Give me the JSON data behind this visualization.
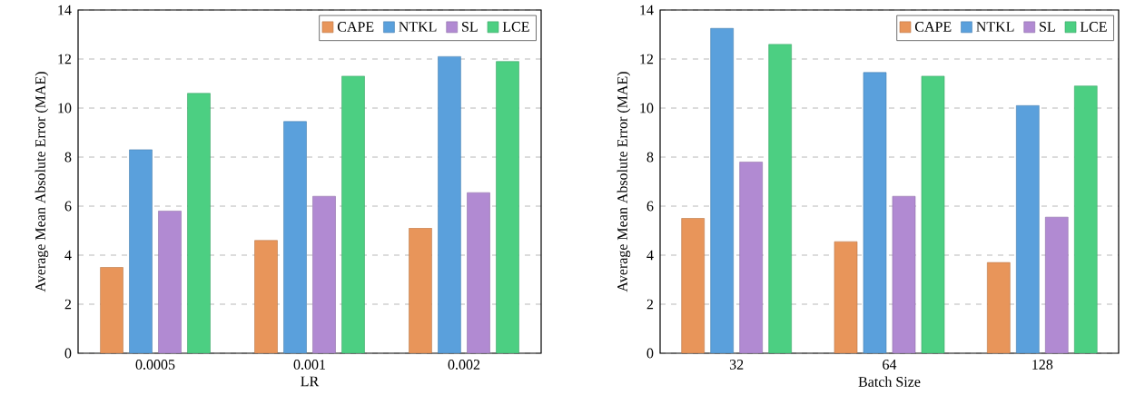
{
  "chart_data": [
    {
      "type": "bar",
      "categories": [
        "0.0005",
        "0.001",
        "0.002"
      ],
      "xlabel": "LR",
      "ylabel": "Average Mean Absolute Error (MAE)",
      "ylim": [
        0,
        14
      ],
      "yticks": [
        0,
        2,
        4,
        6,
        8,
        10,
        12,
        14
      ],
      "grid": "y",
      "legend": "top right",
      "series": [
        {
          "name": "CAPE",
          "color": "#e8955a",
          "values": [
            3.5,
            4.6,
            5.1
          ]
        },
        {
          "name": "NTKL",
          "color": "#5aa0dc",
          "values": [
            8.3,
            9.45,
            12.1
          ]
        },
        {
          "name": "SL",
          "color": "#b18ad2",
          "values": [
            5.8,
            6.4,
            6.55
          ]
        },
        {
          "name": "LCE",
          "color": "#4ccf82",
          "values": [
            10.6,
            11.3,
            11.9
          ]
        }
      ]
    },
    {
      "type": "bar",
      "categories": [
        "32",
        "64",
        "128"
      ],
      "xlabel": "Batch Size",
      "ylabel": "Average Mean Absolute Error (MAE)",
      "ylim": [
        0,
        14
      ],
      "yticks": [
        0,
        2,
        4,
        6,
        8,
        10,
        12,
        14
      ],
      "grid": "y",
      "legend": "top right",
      "series": [
        {
          "name": "CAPE",
          "color": "#e8955a",
          "values": [
            5.5,
            4.55,
            3.7
          ]
        },
        {
          "name": "NTKL",
          "color": "#5aa0dc",
          "values": [
            13.25,
            11.45,
            10.1
          ]
        },
        {
          "name": "SL",
          "color": "#b18ad2",
          "values": [
            7.8,
            6.4,
            5.55
          ]
        },
        {
          "name": "LCE",
          "color": "#4ccf82",
          "values": [
            12.6,
            11.3,
            10.9
          ]
        }
      ]
    }
  ]
}
